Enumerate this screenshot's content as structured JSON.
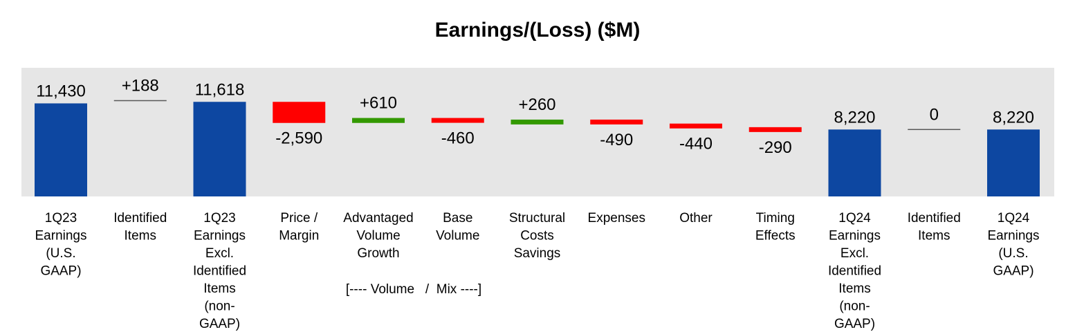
{
  "chart_data": {
    "type": "bar",
    "subtype": "waterfall",
    "title": "Earnings/(Loss) ($M)",
    "xlabel": "",
    "ylabel": "",
    "grid": false,
    "legend": "none",
    "categories": [
      [
        "1Q23",
        "Earnings",
        "(U.S.",
        "GAAP)"
      ],
      [
        "Identified",
        "Items"
      ],
      [
        "1Q23",
        "Earnings",
        "Excl.",
        "Identified",
        "Items",
        "(non-",
        "GAAP)"
      ],
      [
        "Price /",
        "Margin"
      ],
      [
        "Advantaged",
        "Volume",
        "Growth"
      ],
      [
        "Base",
        "Volume"
      ],
      [
        "Structural",
        "Costs",
        "Savings"
      ],
      [
        "Expenses"
      ],
      [
        "Other"
      ],
      [
        "Timing",
        "Effects"
      ],
      [
        "1Q24",
        "Earnings",
        "Excl.",
        "Identified",
        "Items",
        "(non-",
        "GAAP)"
      ],
      [
        "Identified",
        "Items"
      ],
      [
        "1Q24",
        "Earnings",
        "(U.S.",
        "GAAP)"
      ]
    ],
    "bars": [
      {
        "kind": "total",
        "value": 11430,
        "label": "11,430"
      },
      {
        "kind": "delta",
        "value": 188,
        "label": "+188"
      },
      {
        "kind": "total",
        "value": 11618,
        "label": "11,618"
      },
      {
        "kind": "delta",
        "value": -2590,
        "label": "-2,590"
      },
      {
        "kind": "delta",
        "value": 610,
        "label": "+610"
      },
      {
        "kind": "delta",
        "value": -460,
        "label": "-460"
      },
      {
        "kind": "delta",
        "value": 260,
        "label": "+260"
      },
      {
        "kind": "delta",
        "value": -490,
        "label": "-490"
      },
      {
        "kind": "delta",
        "value": -440,
        "label": "-440"
      },
      {
        "kind": "delta",
        "value": -290,
        "label": "-290"
      },
      {
        "kind": "total",
        "value": 8220,
        "label": "8,220"
      },
      {
        "kind": "delta",
        "value": 0,
        "label": "0"
      },
      {
        "kind": "total",
        "value": 8220,
        "label": "8,220"
      }
    ],
    "annotation": "[---- Volume   /  Mix ----]",
    "colors": {
      "total": "#0d47a1",
      "increase": "#339900",
      "decrease": "#ff0000",
      "zero": "#595959",
      "plot_background": "#e6e6e6"
    }
  }
}
